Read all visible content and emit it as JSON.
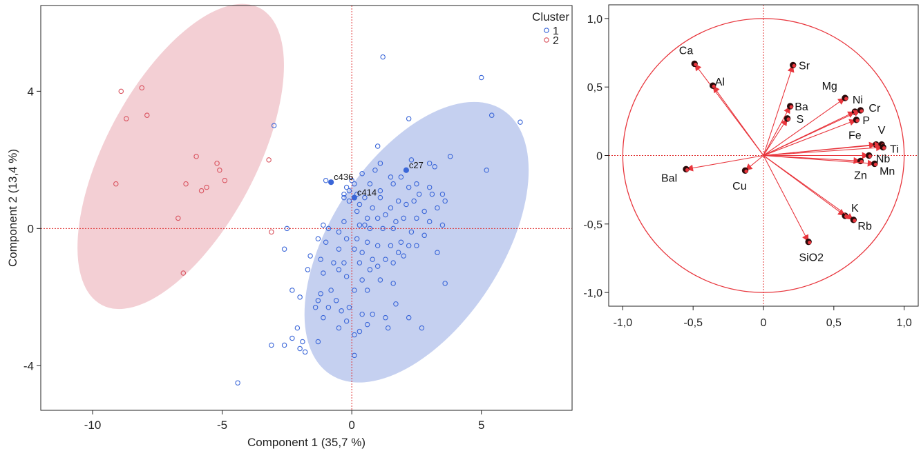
{
  "chart_data": [
    {
      "type": "scatter",
      "title": "",
      "xlabel": "Component 1 (35,7 %)",
      "ylabel": "Component 2 (13,4 %)",
      "xlim": [
        -12,
        8.5
      ],
      "ylim": [
        -5.3,
        6.5
      ],
      "xticks": [
        -10,
        -5,
        0,
        5
      ],
      "xtick_labels": [
        "-10",
        "-5",
        "0",
        "5"
      ],
      "yticks": [
        -4,
        0,
        4
      ],
      "ytick_labels": [
        "-4",
        "0",
        "4"
      ],
      "reference_lines": {
        "x": 0,
        "y": 0,
        "style": "dotted",
        "color": "#e03030"
      },
      "legend": {
        "title": "Cluster",
        "position": "top-right"
      },
      "ellipses": [
        {
          "cluster": "1",
          "center": [
            2.5,
            -0.4
          ],
          "semi_axes": [
            3.3,
            4.6
          ],
          "rotation_deg": 33,
          "color": "#c5d0f0"
        },
        {
          "cluster": "2",
          "center": [
            -6.6,
            2.1
          ],
          "semi_axes": [
            2.9,
            4.9
          ],
          "rotation_deg": 28,
          "color": "#f3cfd4"
        }
      ],
      "series": [
        {
          "name": "1",
          "color": "#3a66d8",
          "points": [
            [
              1.2,
              5.0
            ],
            [
              5.0,
              4.4
            ],
            [
              6.5,
              3.1
            ],
            [
              5.4,
              3.3
            ],
            [
              2.2,
              3.2
            ],
            [
              5.2,
              1.7
            ],
            [
              -3.0,
              3.0
            ],
            [
              1.0,
              2.4
            ],
            [
              3.8,
              2.1
            ],
            [
              2.3,
              2.0
            ],
            [
              3.0,
              1.9
            ],
            [
              3.2,
              1.8
            ],
            [
              1.1,
              1.9
            ],
            [
              0.9,
              1.7
            ],
            [
              0.4,
              1.6
            ],
            [
              0.0,
              1.4
            ],
            [
              -0.2,
              1.2
            ],
            [
              -1.0,
              1.4
            ],
            [
              1.5,
              1.5
            ],
            [
              1.9,
              1.5
            ],
            [
              2.5,
              1.3
            ],
            [
              3.0,
              1.2
            ],
            [
              2.2,
              1.2
            ],
            [
              1.6,
              1.3
            ],
            [
              0.7,
              1.3
            ],
            [
              0.1,
              1.3
            ],
            [
              -0.3,
              1.0
            ],
            [
              -0.1,
              1.1
            ],
            [
              0.2,
              1.0
            ],
            [
              0.5,
              0.9
            ],
            [
              1.1,
              0.9
            ],
            [
              1.8,
              0.8
            ],
            [
              2.4,
              0.8
            ],
            [
              2.6,
              1.0
            ],
            [
              3.1,
              1.0
            ],
            [
              3.5,
              1.0
            ],
            [
              3.6,
              0.8
            ],
            [
              3.3,
              0.6
            ],
            [
              2.8,
              0.5
            ],
            [
              2.1,
              0.7
            ],
            [
              1.5,
              0.6
            ],
            [
              0.8,
              0.6
            ],
            [
              0.3,
              0.7
            ],
            [
              -0.1,
              0.8
            ],
            [
              -0.3,
              0.9
            ],
            [
              0.2,
              0.5
            ],
            [
              0.6,
              0.3
            ],
            [
              1.0,
              0.3
            ],
            [
              1.3,
              0.4
            ],
            [
              1.7,
              0.2
            ],
            [
              2.0,
              0.3
            ],
            [
              2.5,
              0.3
            ],
            [
              3.0,
              0.2
            ],
            [
              3.5,
              0.1
            ],
            [
              0.3,
              0.1
            ],
            [
              0.7,
              0.0
            ],
            [
              1.2,
              0.0
            ],
            [
              1.6,
              0.0
            ],
            [
              2.3,
              -0.1
            ],
            [
              2.8,
              -0.2
            ],
            [
              -0.3,
              0.2
            ],
            [
              -2.5,
              0.0
            ],
            [
              -1.1,
              0.1
            ],
            [
              -0.9,
              0.0
            ],
            [
              -0.5,
              -0.1
            ],
            [
              -0.2,
              -0.3
            ],
            [
              0.2,
              -0.3
            ],
            [
              0.6,
              -0.4
            ],
            [
              1.0,
              -0.5
            ],
            [
              1.5,
              -0.5
            ],
            [
              1.9,
              -0.4
            ],
            [
              2.5,
              -0.5
            ],
            [
              3.3,
              -0.7
            ],
            [
              -1.3,
              -0.3
            ],
            [
              -1.0,
              -0.4
            ],
            [
              -0.5,
              -0.6
            ],
            [
              0.1,
              -0.6
            ],
            [
              0.4,
              -0.7
            ],
            [
              0.8,
              -0.9
            ],
            [
              1.3,
              -0.9
            ],
            [
              1.8,
              -0.7
            ],
            [
              2.2,
              -0.5
            ],
            [
              2.0,
              -0.8
            ],
            [
              -2.6,
              -0.6
            ],
            [
              -1.6,
              -0.8
            ],
            [
              -1.2,
              -0.9
            ],
            [
              -0.7,
              -1.0
            ],
            [
              -0.3,
              -1.0
            ],
            [
              0.3,
              -1.0
            ],
            [
              0.7,
              -1.2
            ],
            [
              1.0,
              -1.1
            ],
            [
              1.6,
              -1.0
            ],
            [
              -1.7,
              -1.2
            ],
            [
              -1.1,
              -1.3
            ],
            [
              -0.5,
              -1.2
            ],
            [
              -0.2,
              -1.4
            ],
            [
              0.4,
              -1.5
            ],
            [
              1.1,
              -1.5
            ],
            [
              1.6,
              -1.6
            ],
            [
              0.1,
              -1.8
            ],
            [
              0.6,
              -1.8
            ],
            [
              -2.3,
              -1.8
            ],
            [
              -1.2,
              -1.9
            ],
            [
              -0.8,
              -1.8
            ],
            [
              -1.3,
              -2.1
            ],
            [
              -0.6,
              -2.1
            ],
            [
              -2.0,
              -2.0
            ],
            [
              -1.4,
              -2.3
            ],
            [
              -0.9,
              -2.3
            ],
            [
              -0.4,
              -2.4
            ],
            [
              -0.1,
              -2.3
            ],
            [
              0.4,
              -2.5
            ],
            [
              0.8,
              -2.5
            ],
            [
              -1.1,
              -2.6
            ],
            [
              -0.2,
              -2.7
            ],
            [
              0.6,
              -2.8
            ],
            [
              1.3,
              -2.6
            ],
            [
              1.7,
              -2.2
            ],
            [
              2.2,
              -2.6
            ],
            [
              2.7,
              -2.9
            ],
            [
              3.6,
              -1.6
            ],
            [
              1.4,
              -2.9
            ],
            [
              -0.5,
              -2.9
            ],
            [
              0.3,
              -3.0
            ],
            [
              0.1,
              -3.1
            ],
            [
              -1.3,
              -3.3
            ],
            [
              -2.1,
              -2.9
            ],
            [
              -2.3,
              -3.2
            ],
            [
              -1.9,
              -3.3
            ],
            [
              -2.0,
              -3.5
            ],
            [
              -1.8,
              -3.6
            ],
            [
              -3.1,
              -3.4
            ],
            [
              -2.6,
              -3.4
            ],
            [
              0.1,
              -3.7
            ],
            [
              -4.4,
              -4.5
            ],
            [
              1.1,
              1.1
            ],
            [
              0.5,
              0.1
            ]
          ],
          "highlighted": [
            {
              "x": -0.8,
              "y": 1.35,
              "label": "c436"
            },
            {
              "x": 0.1,
              "y": 0.9,
              "label": "c414"
            },
            {
              "x": 2.1,
              "y": 1.7,
              "label": "c27"
            }
          ]
        },
        {
          "name": "2",
          "color": "#d9535f",
          "points": [
            [
              -8.9,
              4.0
            ],
            [
              -8.1,
              4.1
            ],
            [
              -8.7,
              3.2
            ],
            [
              -7.9,
              3.3
            ],
            [
              -6.0,
              2.1
            ],
            [
              -5.2,
              1.9
            ],
            [
              -5.1,
              1.7
            ],
            [
              -4.9,
              1.4
            ],
            [
              -6.4,
              1.3
            ],
            [
              -5.6,
              1.2
            ],
            [
              -5.8,
              1.1
            ],
            [
              -9.1,
              1.3
            ],
            [
              -3.2,
              2.0
            ],
            [
              -6.7,
              0.3
            ],
            [
              -3.1,
              -0.1
            ],
            [
              -6.5,
              -1.3
            ]
          ]
        }
      ]
    },
    {
      "type": "scatter",
      "subtype": "loading-plot",
      "title": "",
      "xlabel": "",
      "ylabel": "",
      "xlim": [
        -1.1,
        1.1
      ],
      "ylim": [
        -1.1,
        1.1
      ],
      "xticks": [
        -1.0,
        -0.5,
        0,
        0.5,
        1.0
      ],
      "xtick_labels": [
        "-1,0",
        "-0,5",
        "0",
        "0,5",
        "1,0"
      ],
      "yticks": [
        1.0,
        0.5,
        0,
        -0.5,
        -1.0
      ],
      "ytick_labels": [
        "1,0",
        "0,5",
        "0",
        "-0,5",
        "-1,0"
      ],
      "unit_circle": true,
      "reference_lines": {
        "x": 0,
        "y": 0,
        "style": "dotted",
        "color": "#e03030"
      },
      "vector_color": "#e8353c",
      "loadings": [
        {
          "name": "Ca",
          "x": -0.49,
          "y": 0.67,
          "label_dx": -0.06,
          "label_dy": 0.1
        },
        {
          "name": "Al",
          "x": -0.36,
          "y": 0.51,
          "label_dx": 0.05,
          "label_dy": 0.03
        },
        {
          "name": "Sr",
          "x": 0.21,
          "y": 0.66,
          "label_dx": 0.08,
          "label_dy": 0.0
        },
        {
          "name": "Ba",
          "x": 0.19,
          "y": 0.36,
          "label_dx": 0.08,
          "label_dy": 0.0
        },
        {
          "name": "S",
          "x": 0.17,
          "y": 0.27,
          "label_dx": 0.09,
          "label_dy": 0.0
        },
        {
          "name": "Mg",
          "x": 0.58,
          "y": 0.42,
          "label_dx": -0.11,
          "label_dy": 0.09
        },
        {
          "name": "Ni",
          "x": 0.65,
          "y": 0.32,
          "label_dx": 0.02,
          "label_dy": 0.09
        },
        {
          "name": "Cr",
          "x": 0.69,
          "y": 0.33,
          "label_dx": 0.1,
          "label_dy": 0.02
        },
        {
          "name": "P",
          "x": 0.66,
          "y": 0.26,
          "label_dx": 0.07,
          "label_dy": 0.0
        },
        {
          "name": "Fe",
          "x": 0.8,
          "y": 0.08,
          "label_dx": -0.15,
          "label_dy": 0.07
        },
        {
          "name": "V",
          "x": 0.84,
          "y": 0.08,
          "label_dx": 0.0,
          "label_dy": 0.11
        },
        {
          "name": "Ti",
          "x": 0.85,
          "y": 0.06,
          "label_dx": 0.08,
          "label_dy": -0.01
        },
        {
          "name": "Nb",
          "x": 0.75,
          "y": 0.0,
          "label_dx": 0.1,
          "label_dy": -0.02
        },
        {
          "name": "Zn",
          "x": 0.69,
          "y": -0.04,
          "label_dx": 0.0,
          "label_dy": -0.1
        },
        {
          "name": "Mn",
          "x": 0.79,
          "y": -0.06,
          "label_dx": 0.09,
          "label_dy": -0.05
        },
        {
          "name": "K",
          "x": 0.58,
          "y": -0.44,
          "label_dx": 0.07,
          "label_dy": 0.06
        },
        {
          "name": "Rb",
          "x": 0.64,
          "y": -0.47,
          "label_dx": 0.08,
          "label_dy": -0.04
        },
        {
          "name": "SiO2",
          "x": 0.32,
          "y": -0.63,
          "label_dx": 0.02,
          "label_dy": -0.11
        },
        {
          "name": "Cu",
          "x": -0.13,
          "y": -0.11,
          "label_dx": -0.04,
          "label_dy": -0.11
        },
        {
          "name": "Bal",
          "x": -0.55,
          "y": -0.1,
          "label_dx": -0.12,
          "label_dy": -0.06
        }
      ]
    }
  ]
}
